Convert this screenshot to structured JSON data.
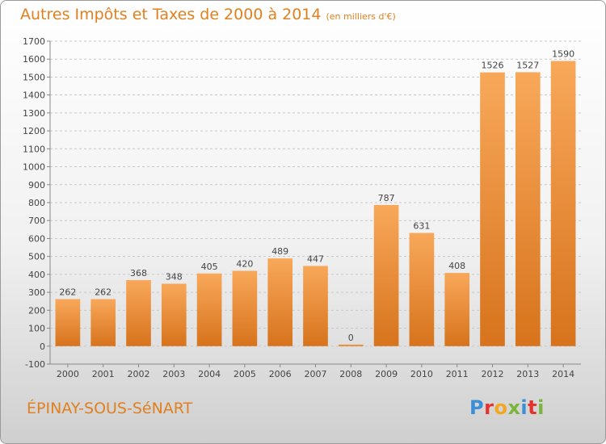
{
  "title": "Autres Impôts et Taxes de 2000 à 2014",
  "unit": "(en milliers d'€)",
  "commune": "ÉPINAY-SOUS-SéNART",
  "logo": {
    "letters": [
      "P",
      "r",
      "o",
      "x",
      "i",
      "t",
      "i"
    ],
    "colors": [
      "#3a8fd6",
      "#e5322d",
      "#f5a623",
      "#7ab53c",
      "#3a8fd6",
      "#e5322d",
      "#7ab53c"
    ]
  },
  "colors": {
    "bar_light": "#f8a85a",
    "bar_dark": "#d7731c",
    "title": "#e08020"
  },
  "chart_data": {
    "type": "bar",
    "categories": [
      "2000",
      "2001",
      "2002",
      "2003",
      "2004",
      "2005",
      "2006",
      "2007",
      "2008",
      "2009",
      "2010",
      "2011",
      "2012",
      "2013",
      "2014"
    ],
    "values": [
      262,
      262,
      368,
      348,
      405,
      420,
      489,
      447,
      0,
      787,
      631,
      408,
      1526,
      1527,
      1590
    ],
    "ylim": [
      -100,
      1700
    ],
    "yticks": [
      -100,
      0,
      100,
      200,
      300,
      400,
      500,
      600,
      700,
      800,
      900,
      1000,
      1100,
      1200,
      1300,
      1400,
      1500,
      1600,
      1700
    ],
    "grid": true,
    "data_labels": true
  }
}
